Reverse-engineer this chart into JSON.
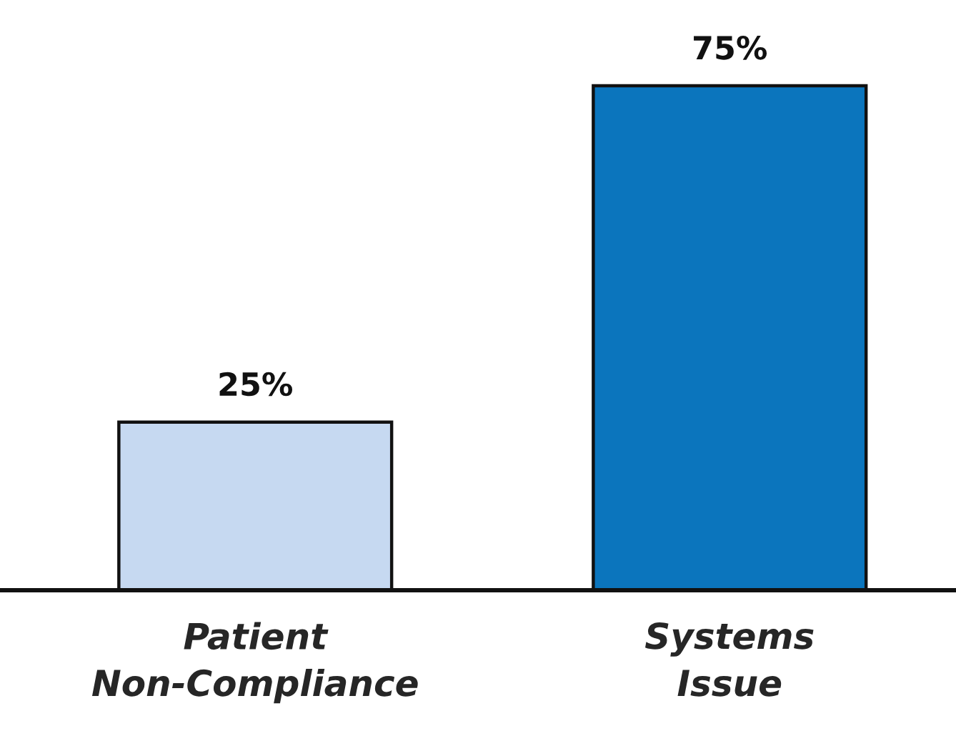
{
  "chart_data": {
    "type": "bar",
    "categories": [
      "Patient\nNon-Compliance",
      "Systems\nIssue"
    ],
    "values": [
      25,
      75
    ],
    "value_labels": [
      "25%",
      "75%"
    ],
    "colors": [
      "#c6d9f1",
      "#0b75bd"
    ],
    "tick_labels": "x",
    "grid": false,
    "legend": false
  }
}
